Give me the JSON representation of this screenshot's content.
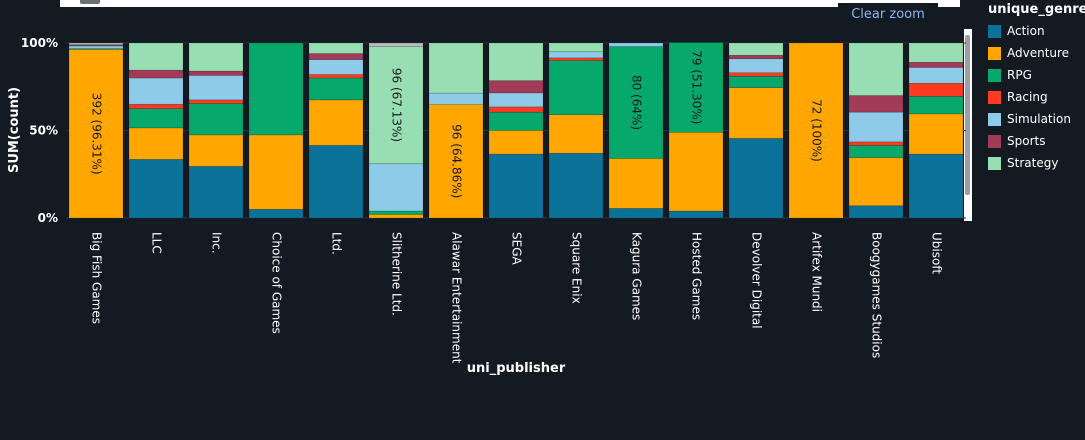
{
  "ui": {
    "clear_zoom_label": "Clear zoom"
  },
  "colors": {
    "background": "#131a22",
    "grid": "#2a3038",
    "axis_text": "#ffffff",
    "Action": "#0b7299",
    "Adventure": "#ffa600",
    "RPG": "#06a86b",
    "Racing": "#ff3a20",
    "Simulation": "#8ecbe8",
    "Sports": "#a23b57",
    "Strategy": "#98deb3",
    "Other": "#bdbdbd"
  },
  "chart_data": {
    "type": "bar",
    "stacked": true,
    "normalized": true,
    "xlabel": "uni_publisher",
    "ylabel": "SUM(count)",
    "yticks": [
      "0%",
      "50%",
      "100%"
    ],
    "ylim": [
      0,
      100
    ],
    "legend_title": "unique_genre",
    "legend_position": "right",
    "categories": [
      "Big Fish Games",
      "LLC",
      "Inc.",
      "Choice of Games",
      "Ltd.",
      "Slitherine Ltd.",
      "Alawar Entertainment",
      "SEGA",
      "Square Enix",
      "Kagura Games",
      "Hosted Games",
      "Devolver Digital",
      "Artifex Mundi",
      "Boogygames Studios",
      "Ubisoft"
    ],
    "series": [
      {
        "name": "Action",
        "values": [
          0,
          33.5,
          29.5,
          5,
          41.5,
          0,
          0,
          36.5,
          37,
          5.5,
          4,
          45.5,
          0,
          7,
          36.5
        ]
      },
      {
        "name": "Adventure",
        "values": [
          96.31,
          18,
          18,
          42.5,
          26,
          2,
          64.86,
          13.5,
          22,
          28.5,
          45,
          29,
          100,
          27.5,
          23
        ]
      },
      {
        "name": "RPG",
        "values": [
          0.5,
          11,
          18,
          52.5,
          12.5,
          2,
          0,
          10.5,
          31,
          64,
          51.3,
          6.5,
          0,
          7,
          10
        ]
      },
      {
        "name": "Racing",
        "values": [
          0,
          2.5,
          2,
          0,
          2,
          0,
          0,
          3,
          1.5,
          0,
          0,
          2,
          0,
          2,
          7.5
        ]
      },
      {
        "name": "Simulation",
        "values": [
          1.5,
          15,
          14,
          0,
          8.5,
          27,
          6.5,
          8,
          3.5,
          2,
          0,
          8,
          0,
          17,
          9
        ]
      },
      {
        "name": "Sports",
        "values": [
          0.5,
          4.5,
          2.5,
          0,
          3.5,
          0,
          0,
          7,
          0,
          0,
          0,
          2,
          0,
          9.5,
          3
        ]
      },
      {
        "name": "Strategy",
        "values": [
          0.5,
          15.5,
          16,
          0,
          6,
          67.13,
          28.64,
          21.5,
          5,
          0,
          0,
          7,
          0,
          30,
          11
        ]
      },
      {
        "name": "",
        "values": [
          0.69,
          0,
          0,
          0,
          0,
          1.87,
          0,
          0,
          0,
          0,
          0,
          0,
          0,
          0,
          0
        ]
      }
    ],
    "annotations": [
      {
        "category": "Big Fish Games",
        "series": "Adventure",
        "text": "392 (96.31%)"
      },
      {
        "category": "Slitherine Ltd.",
        "series": "Strategy",
        "text": "96 (67.13%)"
      },
      {
        "category": "Alawar Entertainment",
        "series": "Adventure",
        "text": "96 (64.86%)"
      },
      {
        "category": "Kagura Games",
        "series": "RPG",
        "text": "80 (64%)"
      },
      {
        "category": "Hosted Games",
        "series": "RPG",
        "text": "79 (51.30%)"
      },
      {
        "category": "Artifex Mundi",
        "series": "Adventure",
        "text": "72 (100%)"
      }
    ]
  }
}
